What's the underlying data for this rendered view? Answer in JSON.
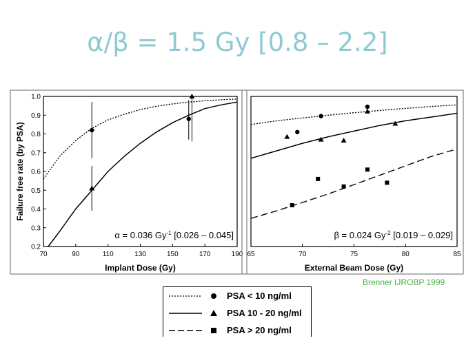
{
  "slide": {
    "title": "α/β = 1.5 Gy [0.8 – 2.2]",
    "credit": "Brenner IJROBP 1999"
  },
  "legend": [
    {
      "label": "PSA < 10 ng/ml",
      "line": "dotted",
      "marker": "circle"
    },
    {
      "label": "PSA 10 - 20 ng/ml",
      "line": "solid",
      "marker": "triangle"
    },
    {
      "label": "PSA > 20 ng/ml",
      "line": "dashed",
      "marker": "square"
    }
  ],
  "chart_data": [
    {
      "type": "line",
      "xlabel": "Implant Dose (Gy)",
      "ylabel": "Failure free rate (by PSA)",
      "xlim": [
        70,
        190
      ],
      "ylim": [
        0.2,
        1.0
      ],
      "xticks": [
        70,
        90,
        110,
        130,
        150,
        170,
        190
      ],
      "yticks": [
        0.2,
        0.3,
        0.4,
        0.5,
        0.6,
        0.7,
        0.8,
        0.9,
        1.0
      ],
      "annotation": {
        "prefix": "α = 0.036 Gy",
        "sup": "-1",
        "suffix": " [0.026 – 0.045]"
      },
      "series": [
        {
          "name": "PSA < 10 ng/ml",
          "line": "dotted",
          "x": [
            70,
            80,
            90,
            100,
            110,
            120,
            130,
            140,
            150,
            160,
            170,
            180,
            190
          ],
          "y": [
            0.56,
            0.68,
            0.765,
            0.83,
            0.875,
            0.905,
            0.93,
            0.947,
            0.96,
            0.97,
            0.977,
            0.982,
            0.986
          ]
        },
        {
          "name": "PSA 10 - 20 ng/ml",
          "line": "solid",
          "x": [
            73,
            80,
            90,
            100,
            110,
            120,
            130,
            140,
            150,
            160,
            170,
            180,
            190
          ],
          "y": [
            0.2,
            0.28,
            0.4,
            0.5,
            0.6,
            0.68,
            0.75,
            0.81,
            0.86,
            0.9,
            0.935,
            0.955,
            0.97
          ]
        }
      ],
      "points": [
        {
          "series": "PSA < 10 ng/ml",
          "marker": "circle",
          "x": 100,
          "y": 0.82,
          "err": [
            0.67,
            0.97
          ]
        },
        {
          "series": "PSA < 10 ng/ml",
          "marker": "circle",
          "x": 160,
          "y": 0.88,
          "err": [
            0.77,
            0.98
          ]
        },
        {
          "series": "PSA 10 - 20 ng/ml",
          "marker": "triangle",
          "x": 100,
          "y": 0.51,
          "err": [
            0.39,
            0.63
          ]
        },
        {
          "series": "PSA 10 - 20 ng/ml",
          "marker": "triangle",
          "x": 162,
          "y": 1.0,
          "err": [
            0.76,
            1.0
          ]
        }
      ]
    },
    {
      "type": "line",
      "xlabel": "External Beam Dose (Gy)",
      "ylabel": "",
      "xlim": [
        65,
        85
      ],
      "ylim": [
        0.2,
        1.0
      ],
      "xticks": [
        65,
        70,
        75,
        80,
        85
      ],
      "annotation": {
        "prefix": "β = 0.024 Gy",
        "sup": "-2",
        "suffix": " [0.019 – 0.029]"
      },
      "series": [
        {
          "name": "PSA < 10 ng/ml",
          "line": "dotted",
          "x": [
            65,
            67.5,
            70,
            72.5,
            75,
            77.5,
            80,
            82.5,
            85
          ],
          "y": [
            0.85,
            0.87,
            0.885,
            0.9,
            0.913,
            0.925,
            0.936,
            0.946,
            0.955
          ]
        },
        {
          "name": "PSA 10 - 20 ng/ml",
          "line": "solid",
          "x": [
            65,
            67.5,
            70,
            72.5,
            75,
            77.5,
            80,
            82.5,
            85
          ],
          "y": [
            0.67,
            0.71,
            0.75,
            0.785,
            0.815,
            0.845,
            0.87,
            0.89,
            0.91
          ]
        },
        {
          "name": "PSA > 20 ng/ml",
          "line": "dashed",
          "x": [
            65,
            67.5,
            70,
            72.5,
            75,
            77.5,
            80,
            82.5,
            85
          ],
          "y": [
            0.35,
            0.39,
            0.435,
            0.48,
            0.53,
            0.58,
            0.63,
            0.68,
            0.72
          ]
        }
      ],
      "points": [
        {
          "series": "PSA < 10 ng/ml",
          "marker": "circle",
          "x": 69.5,
          "y": 0.81
        },
        {
          "series": "PSA < 10 ng/ml",
          "marker": "circle",
          "x": 71.8,
          "y": 0.895
        },
        {
          "series": "PSA < 10 ng/ml",
          "marker": "circle",
          "x": 76.3,
          "y": 0.945
        },
        {
          "series": "PSA 10 - 20 ng/ml",
          "marker": "triangle",
          "x": 68.5,
          "y": 0.785
        },
        {
          "series": "PSA 10 - 20 ng/ml",
          "marker": "triangle",
          "x": 71.8,
          "y": 0.77
        },
        {
          "series": "PSA 10 - 20 ng/ml",
          "marker": "triangle",
          "x": 74.0,
          "y": 0.765
        },
        {
          "series": "PSA 10 - 20 ng/ml",
          "marker": "triangle",
          "x": 76.3,
          "y": 0.92
        },
        {
          "series": "PSA 10 - 20 ng/ml",
          "marker": "triangle",
          "x": 79.0,
          "y": 0.855
        },
        {
          "series": "PSA > 20 ng/ml",
          "marker": "square",
          "x": 69.0,
          "y": 0.42
        },
        {
          "series": "PSA > 20 ng/ml",
          "marker": "square",
          "x": 71.5,
          "y": 0.56
        },
        {
          "series": "PSA > 20 ng/ml",
          "marker": "square",
          "x": 74.0,
          "y": 0.52
        },
        {
          "series": "PSA > 20 ng/ml",
          "marker": "square",
          "x": 76.3,
          "y": 0.61
        },
        {
          "series": "PSA > 20 ng/ml",
          "marker": "square",
          "x": 78.2,
          "y": 0.54
        }
      ]
    }
  ]
}
